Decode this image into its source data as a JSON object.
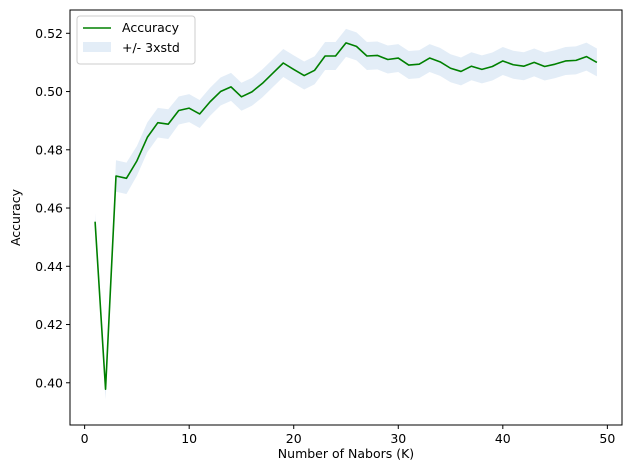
{
  "chart_data": {
    "type": "line",
    "xlabel": "Number of Nabors (K)",
    "ylabel": "Accuracy",
    "xlim": [
      -1.4,
      51.4
    ],
    "ylim": [
      0.3855,
      0.528
    ],
    "xticks": [
      0,
      10,
      20,
      30,
      40,
      50
    ],
    "yticks": [
      0.4,
      0.42,
      0.44,
      0.46,
      0.48,
      0.5,
      0.52
    ],
    "grid": false,
    "legend_position": "upper-left",
    "band_multiplier": 3,
    "colors": {
      "line": "#008000",
      "band": "#e3edf7"
    },
    "series": [
      {
        "name": "Accuracy",
        "x": [
          1,
          2,
          3,
          4,
          5,
          6,
          7,
          8,
          9,
          10,
          11,
          12,
          13,
          14,
          15,
          16,
          17,
          18,
          19,
          20,
          21,
          22,
          23,
          24,
          25,
          26,
          27,
          28,
          29,
          30,
          31,
          32,
          33,
          34,
          35,
          36,
          37,
          38,
          39,
          40,
          41,
          42,
          43,
          44,
          45,
          46,
          47,
          48,
          49
        ],
        "values": [
          0.4553,
          0.3978,
          0.471,
          0.4702,
          0.4762,
          0.4843,
          0.4893,
          0.4888,
          0.4935,
          0.4943,
          0.4923,
          0.4965,
          0.5,
          0.5016,
          0.4982,
          0.4999,
          0.5028,
          0.5063,
          0.5098,
          0.5076,
          0.5055,
          0.5073,
          0.5122,
          0.5122,
          0.5167,
          0.5155,
          0.5122,
          0.5124,
          0.511,
          0.5115,
          0.5091,
          0.5094,
          0.5115,
          0.5102,
          0.508,
          0.5069,
          0.5087,
          0.5076,
          0.5086,
          0.5105,
          0.5092,
          0.5087,
          0.51,
          0.5086,
          0.5094,
          0.5105,
          0.5107,
          0.512,
          0.51
        ],
        "std": [
          0.001,
          0.0012,
          0.0018,
          0.0018,
          0.0017,
          0.0017,
          0.0017,
          0.0017,
          0.0016,
          0.0016,
          0.0016,
          0.0016,
          0.0016,
          0.0016,
          0.0016,
          0.0016,
          0.0016,
          0.0016,
          0.0016,
          0.0016,
          0.0016,
          0.0016,
          0.0016,
          0.0016,
          0.0016,
          0.0016,
          0.0016,
          0.0016,
          0.0016,
          0.0016,
          0.0016,
          0.0016,
          0.0016,
          0.0016,
          0.0016,
          0.0016,
          0.0016,
          0.0016,
          0.0016,
          0.0016,
          0.0016,
          0.0016,
          0.0016,
          0.0016,
          0.0016,
          0.0016,
          0.0016,
          0.0016,
          0.0016
        ]
      }
    ],
    "legend": [
      {
        "label": "Accuracy",
        "kind": "line"
      },
      {
        "label": "+/- 3xstd",
        "kind": "band"
      }
    ]
  }
}
